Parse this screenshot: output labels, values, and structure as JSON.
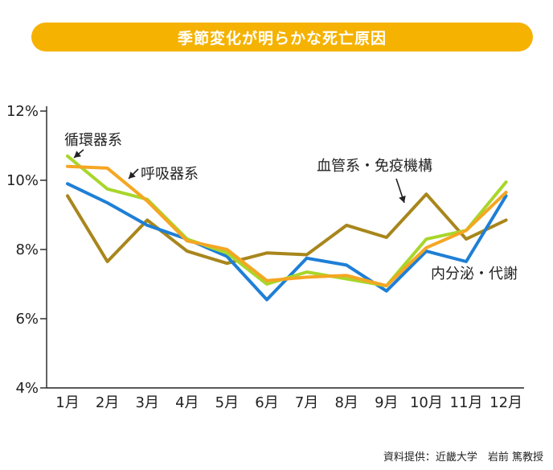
{
  "chart_data": {
    "type": "line",
    "title": "季節変化が明らかな死亡原因",
    "categories": [
      "1月",
      "2月",
      "3月",
      "4月",
      "5月",
      "6月",
      "7月",
      "8月",
      "9月",
      "10月",
      "11月",
      "12月"
    ],
    "ylim": [
      4,
      12
    ],
    "yticks": [
      4,
      6,
      8,
      10,
      12
    ],
    "ytick_labels": [
      "4%",
      "6%",
      "8%",
      "10%",
      "12%"
    ],
    "grid": false,
    "series": [
      {
        "name": "循環器系",
        "color": "#a8d62b",
        "values": [
          10.7,
          9.75,
          9.45,
          8.3,
          7.9,
          7.0,
          7.35,
          7.15,
          6.95,
          8.3,
          8.55,
          9.95
        ]
      },
      {
        "name": "呼吸器系",
        "color": "#f5a623",
        "values": [
          10.4,
          10.35,
          9.4,
          8.25,
          8.0,
          7.1,
          7.2,
          7.25,
          6.95,
          8.05,
          8.55,
          9.65
        ]
      },
      {
        "name": "血管系・免疫機構",
        "color": "#a8861c",
        "values": [
          9.55,
          7.65,
          8.85,
          7.95,
          7.6,
          7.9,
          7.85,
          8.7,
          8.35,
          9.6,
          8.3,
          8.85
        ]
      },
      {
        "name": "内分泌・代謝",
        "color": "#1e7fd6",
        "values": [
          9.9,
          9.35,
          8.7,
          8.3,
          7.8,
          6.55,
          7.75,
          7.55,
          6.8,
          7.95,
          7.65,
          9.55
        ]
      }
    ],
    "annotations": [
      {
        "text": "循環器系",
        "series": 0
      },
      {
        "text": "呼吸器系",
        "series": 1
      },
      {
        "text": "血管系・免疫機構",
        "series": 2
      },
      {
        "text": "内分泌・代謝",
        "series": 3
      }
    ],
    "source": "資料提供：近畿大学　岩前 篤教授"
  }
}
